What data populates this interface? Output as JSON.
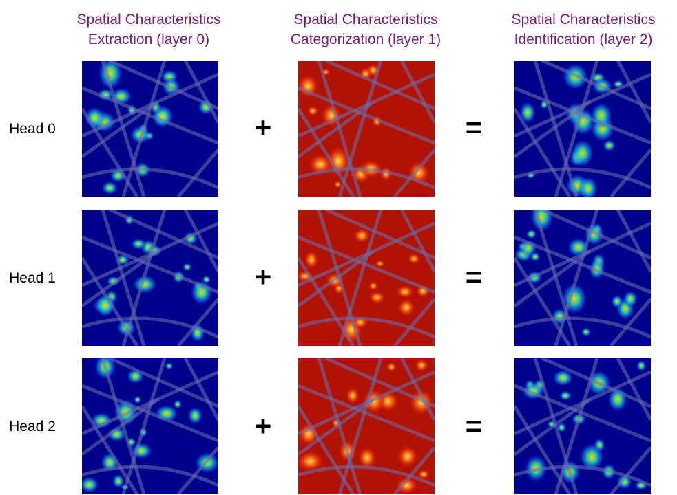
{
  "column_headers": [
    {
      "line1": "Spatial Characteristics",
      "line2": "Extraction (layer 0)"
    },
    {
      "line1": "Spatial Characteristics",
      "line2": "Categorization (layer 1)"
    },
    {
      "line1": "Spatial Characteristics",
      "line2": "Identification (layer 2)"
    }
  ],
  "rows": [
    {
      "label": "Head 0",
      "operator_plus": "+",
      "operator_equals": "="
    },
    {
      "label": "Head 1",
      "operator_plus": "+",
      "operator_equals": "="
    },
    {
      "label": "Head 2",
      "operator_plus": "+",
      "operator_equals": "="
    }
  ],
  "colors": {
    "header_text": "#7b1a7b",
    "heatmap_low": "#00008b",
    "heatmap_high_bg": "#b01206",
    "street_overlay": "#6b6fb0"
  }
}
